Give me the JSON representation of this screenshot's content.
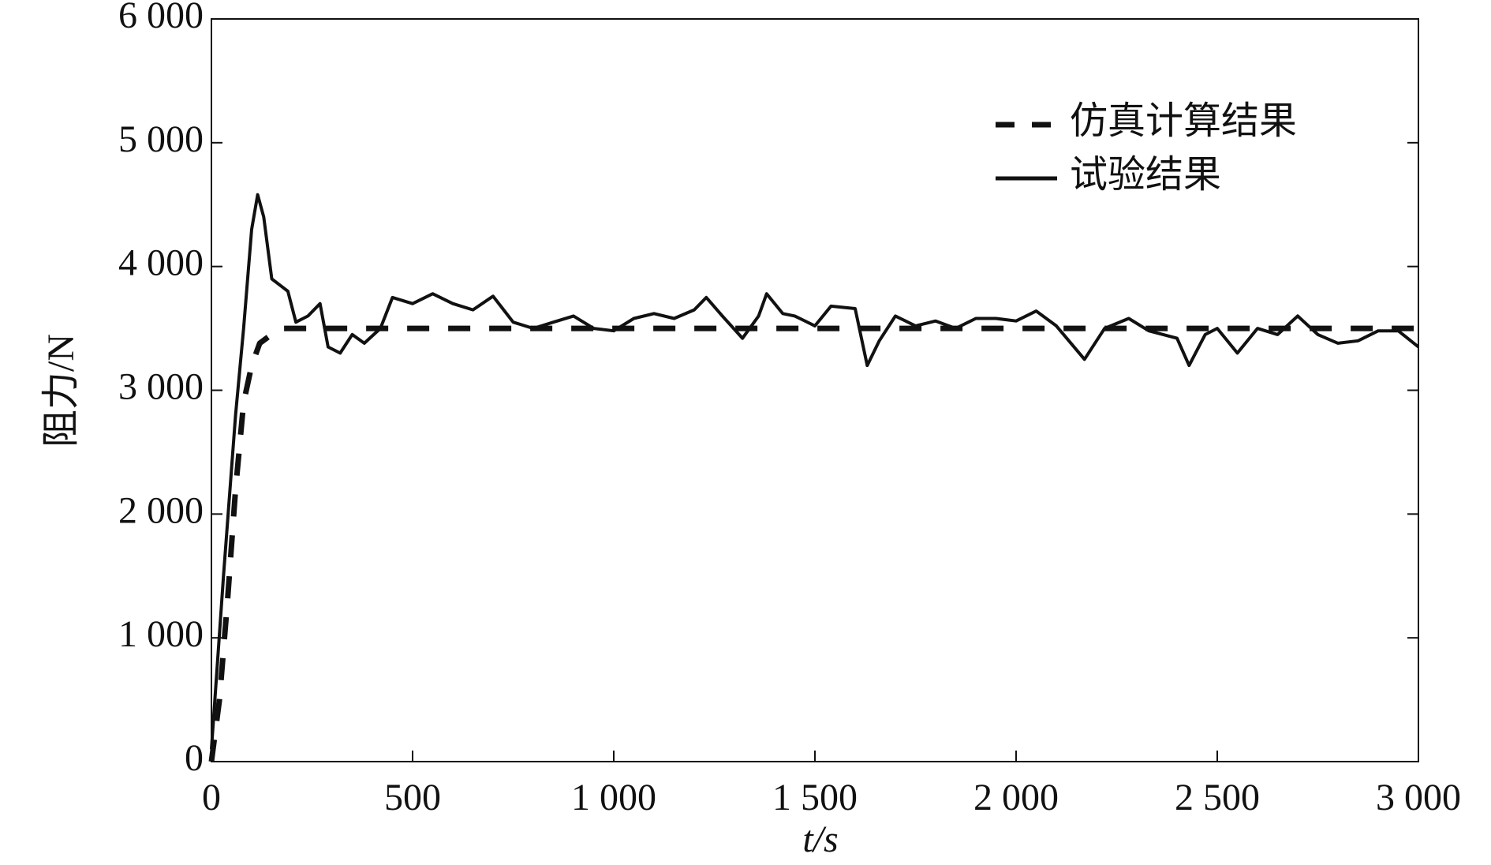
{
  "chart_data": {
    "type": "line",
    "xlabel": "t/s",
    "ylabel": "阻力/N",
    "xlim": [
      0,
      3000
    ],
    "ylim": [
      0,
      6000
    ],
    "xticks": [
      0,
      500,
      {
        "value": 1000,
        "label": "1 000"
      },
      {
        "value": 1500,
        "label": "1 500"
      },
      {
        "value": 2000,
        "label": "2 000"
      },
      {
        "value": 2500,
        "label": "2 500"
      },
      {
        "value": 3000,
        "label": "3 000"
      }
    ],
    "yticks": [
      0,
      {
        "value": 1000,
        "label": "1 000"
      },
      {
        "value": 2000,
        "label": "2 000"
      },
      {
        "value": 3000,
        "label": "3 000"
      },
      {
        "value": 4000,
        "label": "4 000"
      },
      {
        "value": 5000,
        "label": "5 000"
      },
      {
        "value": 6000,
        "label": "6 000"
      }
    ],
    "legend": "upper right",
    "series": [
      {
        "name": "仿真计算结果",
        "color": "#111111",
        "dash": true,
        "x": [
          0,
          20,
          40,
          60,
          80,
          100,
          120,
          170,
          3000
        ],
        "values": [
          0,
          500,
          1300,
          2200,
          2900,
          3200,
          3380,
          3500,
          3500
        ]
      },
      {
        "name": "试验结果",
        "color": "#111111",
        "dash": false,
        "x": [
          0,
          30,
          60,
          80,
          100,
          115,
          130,
          150,
          170,
          190,
          210,
          240,
          270,
          290,
          320,
          350,
          380,
          420,
          450,
          500,
          550,
          600,
          650,
          700,
          750,
          800,
          850,
          900,
          950,
          1000,
          1050,
          1100,
          1150,
          1200,
          1230,
          1270,
          1320,
          1360,
          1380,
          1420,
          1450,
          1500,
          1540,
          1600,
          1630,
          1660,
          1700,
          1750,
          1800,
          1850,
          1900,
          1950,
          2000,
          2050,
          2100,
          2170,
          2220,
          2280,
          2330,
          2400,
          2430,
          2470,
          2500,
          2550,
          2600,
          2650,
          2700,
          2750,
          2800,
          2850,
          2900,
          2950,
          3000
        ],
        "values": [
          100,
          1500,
          2800,
          3500,
          4300,
          4580,
          4400,
          3900,
          3850,
          3800,
          3550,
          3600,
          3700,
          3350,
          3300,
          3450,
          3380,
          3500,
          3750,
          3700,
          3780,
          3700,
          3650,
          3760,
          3550,
          3500,
          3550,
          3600,
          3500,
          3480,
          3580,
          3620,
          3580,
          3650,
          3750,
          3600,
          3420,
          3600,
          3780,
          3620,
          3600,
          3520,
          3680,
          3660,
          3200,
          3400,
          3600,
          3520,
          3560,
          3500,
          3580,
          3580,
          3560,
          3640,
          3520,
          3250,
          3500,
          3580,
          3480,
          3420,
          3200,
          3450,
          3500,
          3300,
          3500,
          3450,
          3600,
          3450,
          3380,
          3400,
          3480,
          3480,
          3350
        ]
      }
    ]
  }
}
